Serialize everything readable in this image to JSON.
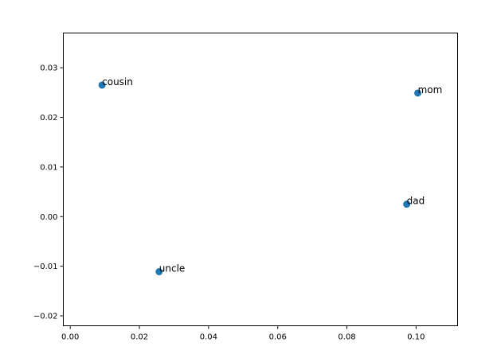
{
  "chart_data": {
    "type": "scatter",
    "title": "",
    "xlabel": "",
    "ylabel": "",
    "xlim": [
      -0.002,
      0.112
    ],
    "ylim": [
      -0.022,
      0.037
    ],
    "xticks": [
      0.0,
      0.02,
      0.04,
      0.06,
      0.08,
      0.1
    ],
    "xtick_labels": [
      "0.00",
      "0.02",
      "0.04",
      "0.06",
      "0.08",
      "0.10"
    ],
    "yticks": [
      -0.02,
      -0.01,
      0.0,
      0.01,
      0.02,
      0.03
    ],
    "ytick_labels": [
      "−0.02",
      "−0.01",
      "0.00",
      "0.01",
      "0.02",
      "0.03"
    ],
    "grid": false,
    "marker_color": "#1f77b4",
    "points": [
      {
        "label": "cousin",
        "x": 0.0092,
        "y": 0.0265
      },
      {
        "label": "mom",
        "x": 0.1005,
        "y": 0.0249
      },
      {
        "label": "dad",
        "x": 0.0973,
        "y": 0.0025
      },
      {
        "label": "uncle",
        "x": 0.0257,
        "y": -0.0111
      }
    ]
  }
}
